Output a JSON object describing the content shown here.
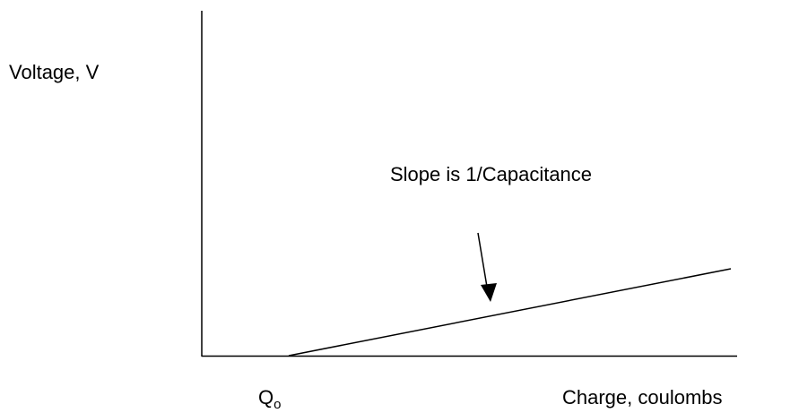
{
  "axes": {
    "y_label": "Voltage, V",
    "x_label": "Charge, coulombs",
    "x_origin_label": {
      "main": "Q",
      "sub": "o"
    }
  },
  "annotation": "Slope is 1/Capacitance"
}
